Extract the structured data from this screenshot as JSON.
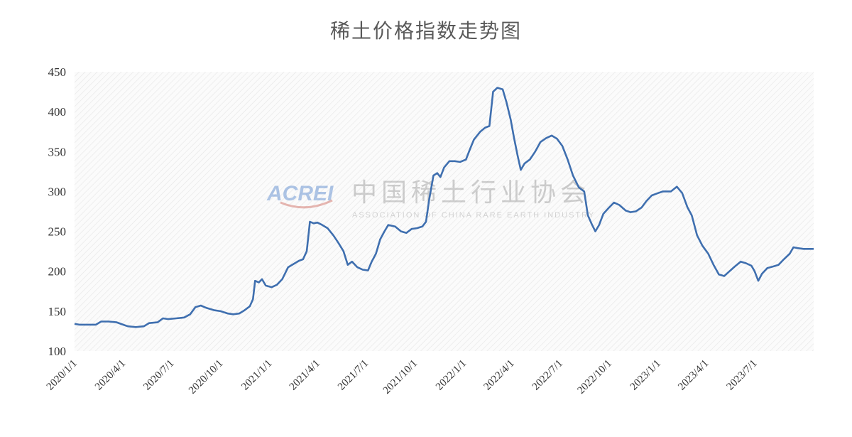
{
  "chart_data": {
    "type": "line",
    "title": "稀土价格指数走势图",
    "xlabel": "",
    "ylabel": "",
    "ylim": [
      100,
      450
    ],
    "yticks": [
      100,
      150,
      200,
      250,
      300,
      350,
      400,
      450
    ],
    "xlim": [
      "2020/1/1",
      "2023/10/20"
    ],
    "xticks": [
      "2020/1/1",
      "2020/4/1",
      "2020/7/1",
      "2020/10/1",
      "2021/1/1",
      "2021/4/1",
      "2021/7/1",
      "2021/10/1",
      "2022/1/1",
      "2022/4/1",
      "2022/7/1",
      "2022/10/1",
      "2023/1/1",
      "2023/4/1",
      "2023/7/1"
    ],
    "grid": false,
    "legend": "none",
    "series": [
      {
        "color": "#3f6faf",
        "points": [
          [
            "2020/1/1",
            134
          ],
          [
            "2020/1/10",
            133
          ],
          [
            "2020/1/25",
            133
          ],
          [
            "2020/2/10",
            133
          ],
          [
            "2020/2/20",
            137
          ],
          [
            "2020/3/5",
            137
          ],
          [
            "2020/3/20",
            136
          ],
          [
            "2020/4/1",
            133
          ],
          [
            "2020/4/10",
            131
          ],
          [
            "2020/4/25",
            130
          ],
          [
            "2020/5/10",
            131
          ],
          [
            "2020/5/20",
            135
          ],
          [
            "2020/6/5",
            136
          ],
          [
            "2020/6/15",
            141
          ],
          [
            "2020/6/25",
            140
          ],
          [
            "2020/7/10",
            141
          ],
          [
            "2020/7/25",
            142
          ],
          [
            "2020/8/5",
            146
          ],
          [
            "2020/8/15",
            155
          ],
          [
            "2020/8/25",
            157
          ],
          [
            "2020/9/5",
            154
          ],
          [
            "2020/9/20",
            151
          ],
          [
            "2020/10/1",
            150
          ],
          [
            "2020/10/15",
            147
          ],
          [
            "2020/10/25",
            146
          ],
          [
            "2020/11/5",
            147
          ],
          [
            "2020/11/15",
            151
          ],
          [
            "2020/11/25",
            156
          ],
          [
            "2020/12/1",
            165
          ],
          [
            "2020/12/5",
            188
          ],
          [
            "2020/12/12",
            186
          ],
          [
            "2020/12/18",
            190
          ],
          [
            "2020/12/25",
            182
          ],
          [
            "2021/1/5",
            180
          ],
          [
            "2021/1/15",
            183
          ],
          [
            "2021/1/25",
            190
          ],
          [
            "2021/2/5",
            205
          ],
          [
            "2021/2/15",
            209
          ],
          [
            "2021/2/25",
            213
          ],
          [
            "2021/3/5",
            215
          ],
          [
            "2021/3/12",
            225
          ],
          [
            "2021/3/18",
            262
          ],
          [
            "2021/3/25",
            260
          ],
          [
            "2021/4/1",
            261
          ],
          [
            "2021/4/10",
            258
          ],
          [
            "2021/4/20",
            254
          ],
          [
            "2021/5/1",
            245
          ],
          [
            "2021/5/10",
            236
          ],
          [
            "2021/5/20",
            225
          ],
          [
            "2021/5/28",
            208
          ],
          [
            "2021/6/5",
            212
          ],
          [
            "2021/6/15",
            205
          ],
          [
            "2021/6/25",
            202
          ],
          [
            "2021/7/5",
            201
          ],
          [
            "2021/7/12",
            212
          ],
          [
            "2021/7/20",
            222
          ],
          [
            "2021/7/28",
            240
          ],
          [
            "2021/8/5",
            250
          ],
          [
            "2021/8/12",
            258
          ],
          [
            "2021/8/25",
            256
          ],
          [
            "2021/9/5",
            250
          ],
          [
            "2021/9/15",
            248
          ],
          [
            "2021/9/25",
            253
          ],
          [
            "2021/10/5",
            254
          ],
          [
            "2021/10/15",
            256
          ],
          [
            "2021/10/22",
            262
          ],
          [
            "2021/10/28",
            290
          ],
          [
            "2021/11/5",
            320
          ],
          [
            "2021/11/12",
            323
          ],
          [
            "2021/11/18",
            318
          ],
          [
            "2021/11/25",
            330
          ],
          [
            "2021/12/5",
            338
          ],
          [
            "2021/12/15",
            338
          ],
          [
            "2021/12/25",
            337
          ],
          [
            "2022/1/5",
            340
          ],
          [
            "2022/1/12",
            352
          ],
          [
            "2022/1/20",
            365
          ],
          [
            "2022/2/1",
            375
          ],
          [
            "2022/2/10",
            380
          ],
          [
            "2022/2/18",
            382
          ],
          [
            "2022/2/25",
            425
          ],
          [
            "2022/3/5",
            430
          ],
          [
            "2022/3/15",
            428
          ],
          [
            "2022/3/22",
            412
          ],
          [
            "2022/3/30",
            390
          ],
          [
            "2022/4/5",
            368
          ],
          [
            "2022/4/12",
            345
          ],
          [
            "2022/4/18",
            327
          ],
          [
            "2022/4/25",
            335
          ],
          [
            "2022/5/5",
            340
          ],
          [
            "2022/5/15",
            350
          ],
          [
            "2022/5/25",
            362
          ],
          [
            "2022/6/5",
            367
          ],
          [
            "2022/6/15",
            370
          ],
          [
            "2022/6/25",
            366
          ],
          [
            "2022/7/5",
            357
          ],
          [
            "2022/7/15",
            340
          ],
          [
            "2022/7/25",
            320
          ],
          [
            "2022/8/5",
            305
          ],
          [
            "2022/8/15",
            300
          ],
          [
            "2022/8/22",
            270
          ],
          [
            "2022/8/30",
            258
          ],
          [
            "2022/9/5",
            250
          ],
          [
            "2022/9/12",
            258
          ],
          [
            "2022/9/20",
            272
          ],
          [
            "2022/10/1",
            280
          ],
          [
            "2022/10/10",
            286
          ],
          [
            "2022/10/20",
            283
          ],
          [
            "2022/11/1",
            276
          ],
          [
            "2022/11/10",
            274
          ],
          [
            "2022/11/20",
            275
          ],
          [
            "2022/12/1",
            280
          ],
          [
            "2022/12/10",
            288
          ],
          [
            "2022/12/20",
            295
          ],
          [
            "2023/1/1",
            298
          ],
          [
            "2023/1/10",
            300
          ],
          [
            "2023/1/25",
            300
          ],
          [
            "2023/2/5",
            306
          ],
          [
            "2023/2/15",
            298
          ],
          [
            "2023/2/25",
            280
          ],
          [
            "2023/3/5",
            270
          ],
          [
            "2023/3/15",
            245
          ],
          [
            "2023/3/25",
            232
          ],
          [
            "2023/4/5",
            222
          ],
          [
            "2023/4/15",
            208
          ],
          [
            "2023/4/25",
            196
          ],
          [
            "2023/5/5",
            194
          ],
          [
            "2023/5/15",
            200
          ],
          [
            "2023/5/25",
            206
          ],
          [
            "2023/6/5",
            212
          ],
          [
            "2023/6/15",
            210
          ],
          [
            "2023/6/25",
            207
          ],
          [
            "2023/7/1",
            200
          ],
          [
            "2023/7/8",
            188
          ],
          [
            "2023/7/15",
            197
          ],
          [
            "2023/7/25",
            204
          ],
          [
            "2023/8/5",
            206
          ],
          [
            "2023/8/15",
            208
          ],
          [
            "2023/8/25",
            215
          ],
          [
            "2023/9/5",
            222
          ],
          [
            "2023/9/12",
            230
          ],
          [
            "2023/9/20",
            229
          ],
          [
            "2023/10/1",
            228
          ],
          [
            "2023/10/20",
            228
          ]
        ]
      }
    ]
  },
  "watermark": {
    "brand": "ACREI",
    "cn_name": "中国稀土行业协会",
    "en_name": "ASSOCIATION OF CHINA RARE EARTH INDUSTRY"
  }
}
